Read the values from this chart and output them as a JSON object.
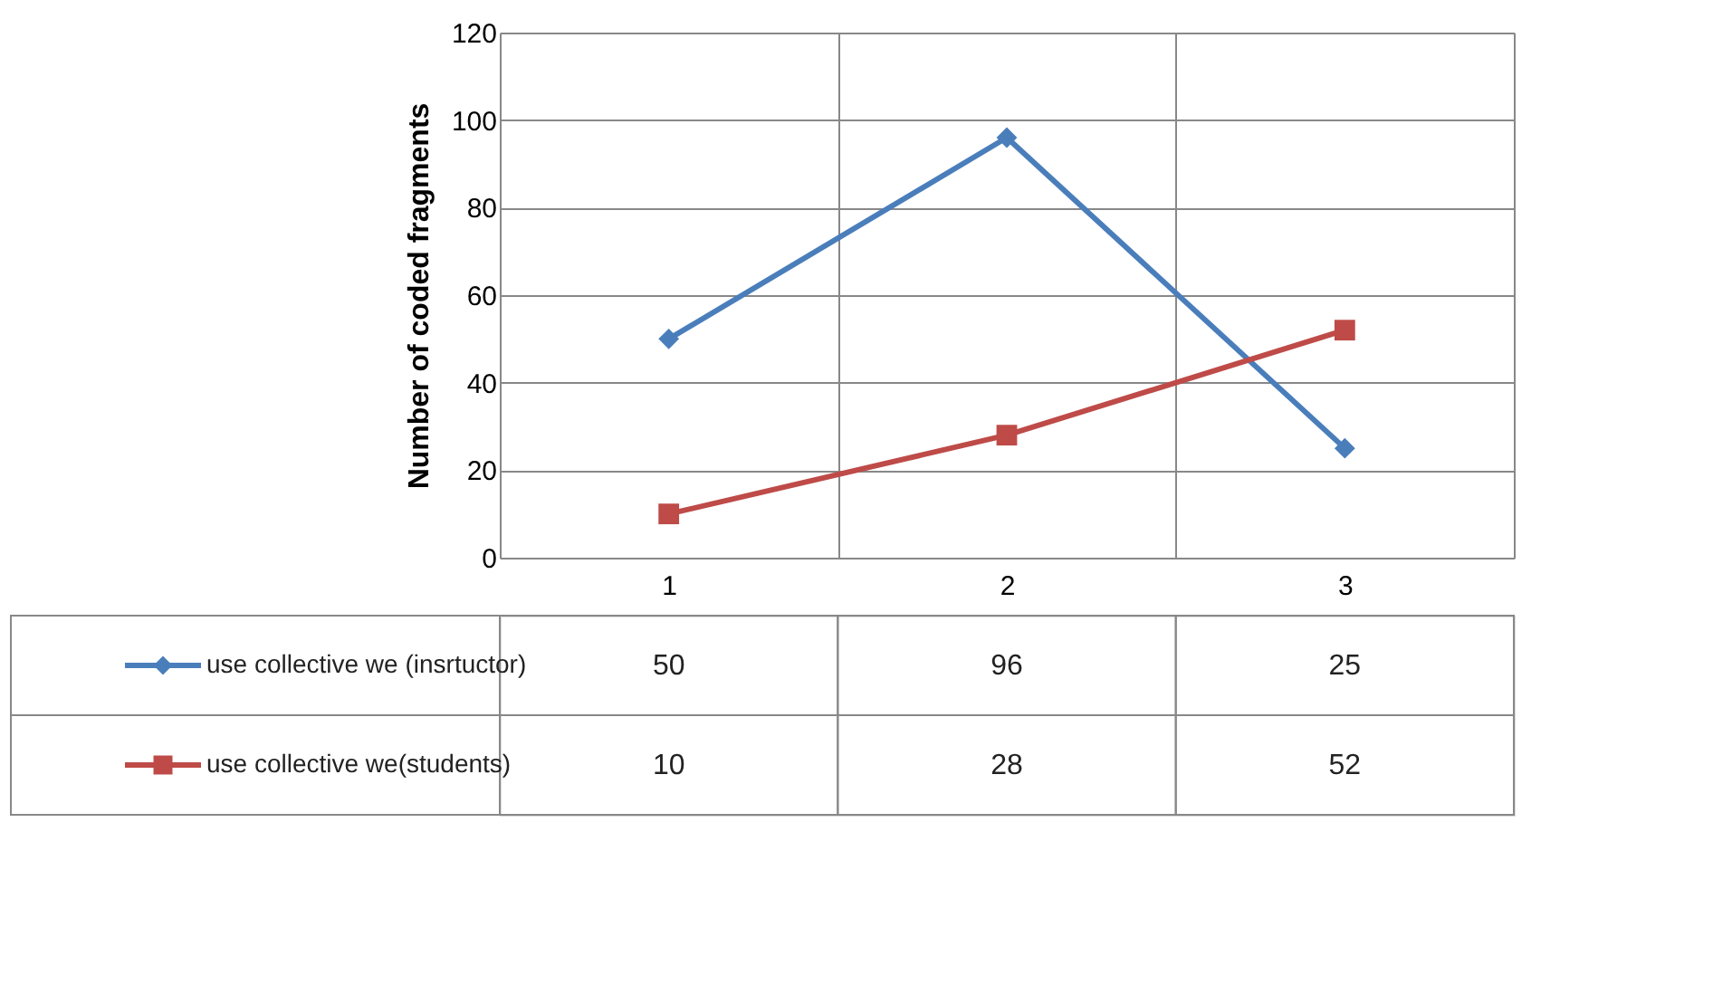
{
  "chart_data": {
    "type": "line",
    "ylabel": "Number of coded fragments",
    "categories": [
      "1",
      "2",
      "3"
    ],
    "series": [
      {
        "name": "use  collective we (insrtuctor)",
        "color": "#4a7ebb",
        "marker": "diamond",
        "values": [
          50,
          96,
          25
        ]
      },
      {
        "name": "use collective we(students)",
        "color": "#be4b48",
        "marker": "square",
        "values": [
          10,
          28,
          52
        ]
      }
    ],
    "ylim": [
      0,
      120
    ],
    "yticks": [
      0,
      20,
      40,
      60,
      80,
      100,
      120
    ],
    "grid": true,
    "legend": "bottom left",
    "data_labels": true,
    "line_style": "solid"
  }
}
